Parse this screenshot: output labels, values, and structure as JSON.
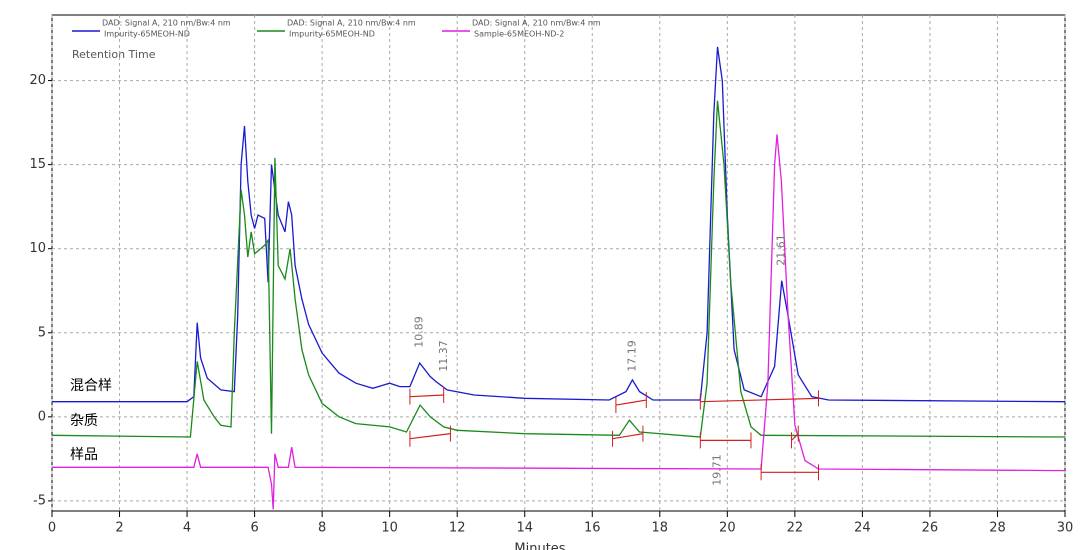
{
  "chart_data": {
    "type": "line",
    "title": "Retention Time",
    "x_label": "Minutes",
    "xlim": [
      0,
      30
    ],
    "ylim": [
      -5.6,
      23.9
    ],
    "xticks": [
      0,
      2,
      4,
      6,
      8,
      10,
      12,
      14,
      16,
      18,
      20,
      22,
      24,
      26,
      28,
      30
    ],
    "yticks": [
      -5,
      0,
      5,
      10,
      15,
      20
    ],
    "grid": true,
    "trace_labels": [
      "混合样",
      "杂质",
      "样品"
    ],
    "series": [
      {
        "name": "Impurity-65MEOH-ND",
        "signal": "DAD: Signal A, 210 nm/Bw:4 nm",
        "color": "#1a1ad0",
        "x": [
          0,
          4.0,
          4.2,
          4.3,
          4.4,
          4.6,
          5.0,
          5.4,
          5.5,
          5.6,
          5.7,
          5.8,
          5.9,
          6.0,
          6.1,
          6.3,
          6.4,
          6.5,
          6.7,
          6.9,
          7.0,
          7.1,
          7.2,
          7.4,
          7.6,
          8.0,
          8.5,
          9.0,
          9.5,
          10.0,
          10.3,
          10.6,
          10.89,
          11.2,
          11.37,
          11.7,
          12.5,
          14,
          16.5,
          17.0,
          17.19,
          17.4,
          17.8,
          19.2,
          19.4,
          19.6,
          19.71,
          19.85,
          20.0,
          20.2,
          20.5,
          21.0,
          21.4,
          21.61,
          21.8,
          22.1,
          22.5,
          23,
          30
        ],
        "values": [
          0.9,
          0.9,
          1.2,
          5.6,
          3.5,
          2.3,
          1.6,
          1.5,
          6,
          15,
          17.3,
          14,
          12,
          11.2,
          12,
          11.8,
          8,
          15,
          12,
          11,
          12.8,
          12,
          9,
          7,
          5.5,
          3.8,
          2.6,
          2.0,
          1.7,
          2.0,
          1.8,
          1.8,
          3.2,
          2.4,
          2.1,
          1.6,
          1.3,
          1.1,
          1.0,
          1.5,
          2.2,
          1.5,
          1.0,
          1.0,
          5,
          18,
          22,
          20,
          12,
          4,
          1.6,
          1.2,
          3,
          8.1,
          6,
          2.5,
          1.2,
          1.0,
          0.9
        ]
      },
      {
        "name": "Impurity-65MEOH-ND",
        "signal": "DAD: Signal A, 210 nm/Bw:4 nm",
        "color": "#1a8a1a",
        "x": [
          0,
          4.1,
          4.3,
          4.5,
          4.8,
          5.0,
          5.3,
          5.4,
          5.6,
          5.7,
          5.8,
          5.9,
          6.0,
          6.3,
          6.4,
          6.5,
          6.6,
          6.7,
          6.9,
          7.05,
          7.2,
          7.4,
          7.6,
          8,
          8.5,
          9,
          10,
          10.5,
          10.9,
          11.2,
          11.6,
          12,
          14,
          16.8,
          17.1,
          17.4,
          19.2,
          19.4,
          19.6,
          19.71,
          19.9,
          20.1,
          20.4,
          20.7,
          21,
          30
        ],
        "values": [
          -1.1,
          -1.2,
          3.3,
          1.0,
          0,
          -0.5,
          -0.6,
          5,
          13.5,
          12,
          9.5,
          11,
          9.7,
          10.2,
          10.5,
          -1.0,
          15.4,
          9,
          8.2,
          10,
          7,
          4,
          2.5,
          0.8,
          0,
          -0.4,
          -0.6,
          -0.9,
          0.7,
          0,
          -0.6,
          -0.8,
          -1.0,
          -1.1,
          -0.2,
          -0.9,
          -1.2,
          2,
          14,
          18.8,
          15,
          8,
          1.5,
          -0.6,
          -1.1,
          -1.2
        ]
      },
      {
        "name": "Sample-65MEOH-ND-2",
        "signal": "DAD: Signal A, 210 nm/Bw:4 nm",
        "color": "#e020e0",
        "x": [
          0,
          4.2,
          4.3,
          4.4,
          6.4,
          6.5,
          6.55,
          6.6,
          6.7,
          7.0,
          7.1,
          7.2,
          21.0,
          21.2,
          21.4,
          21.47,
          21.6,
          21.8,
          22.0,
          22.3,
          22.7,
          30
        ],
        "values": [
          -3.0,
          -3.0,
          -2.2,
          -3,
          -3,
          -4,
          -5.5,
          -2.2,
          -3,
          -3,
          -1.8,
          -3,
          -3.1,
          2,
          15,
          16.8,
          14,
          6,
          -0.5,
          -2.6,
          -3.1,
          -3.2
        ]
      }
    ],
    "peak_labels": [
      10.89,
      11.37,
      17.19,
      19.71,
      21.61
    ],
    "baseline_color": "#d02020",
    "baselines": [
      {
        "x": [
          10.6,
          11.6
        ],
        "y": [
          1.2,
          1.3
        ]
      },
      {
        "x": [
          16.7,
          17.6
        ],
        "y": [
          0.7,
          1.0
        ]
      },
      {
        "x": [
          19.2,
          22.7
        ],
        "y": [
          0.9,
          1.1
        ]
      },
      {
        "x": [
          10.6,
          11.8
        ],
        "y": [
          -1.3,
          -1.0
        ]
      },
      {
        "x": [
          16.6,
          17.5
        ],
        "y": [
          -1.3,
          -1.0
        ]
      },
      {
        "x": [
          19.2,
          20.7
        ],
        "y": [
          -1.4,
          -1.4
        ]
      },
      {
        "x": [
          21.9,
          22.1
        ],
        "y": [
          -1.4,
          -1.0
        ]
      },
      {
        "x": [
          21.0,
          22.7
        ],
        "y": [
          -3.3,
          -3.3
        ]
      }
    ]
  }
}
